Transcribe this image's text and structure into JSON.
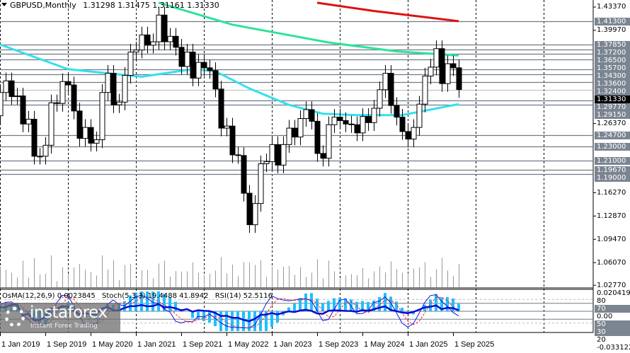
{
  "header": {
    "symbol": "GBPUSD,Monthly",
    "ohlc": "1.31298 1.31475 1.31161 1.31330"
  },
  "indicator_header": {
    "osma": "OsMA(12,26,9) 0.0023845",
    "stoch": "Stoch(5,3,3) 19.4488 41.8942",
    "rsi": "RSI(14) 52.5116"
  },
  "colors": {
    "bull": "#ffffff",
    "bear": "#000000",
    "ma_cyan": "#33e0ee",
    "ma_green": "#2de39a",
    "ma_red": "#e01010",
    "level": "#6f7b89",
    "osma": "#1ec0ff",
    "stoch_main": "#1010e0",
    "stoch_signal": "#ff2020",
    "rsi": "#0a0ad0"
  },
  "price_axis": {
    "ticks": [
      "1.43370",
      "1.39970",
      "1.26370",
      "1.16270",
      "1.12870",
      "1.09470",
      "1.06070",
      "1.02770"
    ],
    "levels": [
      "1.41300",
      "1.37850",
      "1.37200",
      "1.36500",
      "1.35700",
      "1.34300",
      "1.33600",
      "1.32400",
      "1.29770",
      "1.29150",
      "1.24700",
      "1.23000",
      "1.21000",
      "1.19670",
      "1.19000"
    ],
    "current": "1.31330"
  },
  "indicator_axis": {
    "max": "0.020419",
    "min": "-0.033122",
    "levels": [
      "80",
      "70",
      "50",
      "30",
      "20"
    ],
    "zero": "0.00"
  },
  "time_axis": [
    "1 Jan 2019",
    "1 Sep 2019",
    "1 May 2020",
    "1 Jan 2021",
    "1 Sep 2021",
    "1 May 2022",
    "1 Jan 2023",
    "1 Sep 2023",
    "1 May 2024",
    "1 Jan 2025",
    "1 Sep 2025"
  ],
  "chart_data": {
    "type": "candlestick",
    "start": "2018-12",
    "closes": [
      1.275,
      1.309,
      1.326,
      1.303,
      1.304,
      1.263,
      1.27,
      1.216,
      1.216,
      1.232,
      1.294,
      1.293,
      1.325,
      1.32,
      1.282,
      1.242,
      1.258,
      1.235,
      1.24,
      1.309,
      1.337,
      1.291,
      1.295,
      1.334,
      1.368,
      1.371,
      1.393,
      1.378,
      1.383,
      1.422,
      1.383,
      1.391,
      1.375,
      1.347,
      1.368,
      1.33,
      1.353,
      1.345,
      1.341,
      1.314,
      1.257,
      1.26,
      1.218,
      1.217,
      1.162,
      1.116,
      1.147,
      1.205,
      1.208,
      1.233,
      1.203,
      1.233,
      1.257,
      1.244,
      1.271,
      1.284,
      1.267,
      1.22,
      1.213,
      1.262,
      1.273,
      1.268,
      1.263,
      1.262,
      1.25,
      1.274,
      1.265,
      1.286,
      1.313,
      1.337,
      1.29,
      1.273,
      1.252,
      1.241,
      1.258,
      1.292,
      1.333,
      1.346,
      1.373,
      1.322,
      1.351,
      1.345,
      1.3133
    ],
    "moving_averages": [
      {
        "color": "#33e0ee",
        "points": [
          [
            "2018-12",
            1.382
          ],
          [
            "2020-01",
            1.343
          ],
          [
            "2021-02",
            1.332
          ],
          [
            "2021-11",
            1.343
          ],
          [
            "2022-03",
            1.34
          ],
          [
            "2022-09",
            1.315
          ],
          [
            "2023-04",
            1.291
          ],
          [
            "2023-10",
            1.278
          ],
          [
            "2024-04",
            1.276
          ],
          [
            "2024-12",
            1.276
          ],
          [
            "2025-10",
            1.292
          ]
        ]
      },
      {
        "color": "#2de39a",
        "points": [
          [
            "2021-05",
            1.44
          ],
          [
            "2022-06",
            1.408
          ],
          [
            "2023-11",
            1.382
          ],
          [
            "2024-11",
            1.369
          ],
          [
            "2025-10",
            1.363
          ]
        ]
      },
      {
        "color": "#e01010",
        "points": [
          [
            "2023-09",
            1.44
          ],
          [
            "2024-07",
            1.428
          ],
          [
            "2025-10",
            1.413
          ]
        ]
      }
    ]
  }
}
